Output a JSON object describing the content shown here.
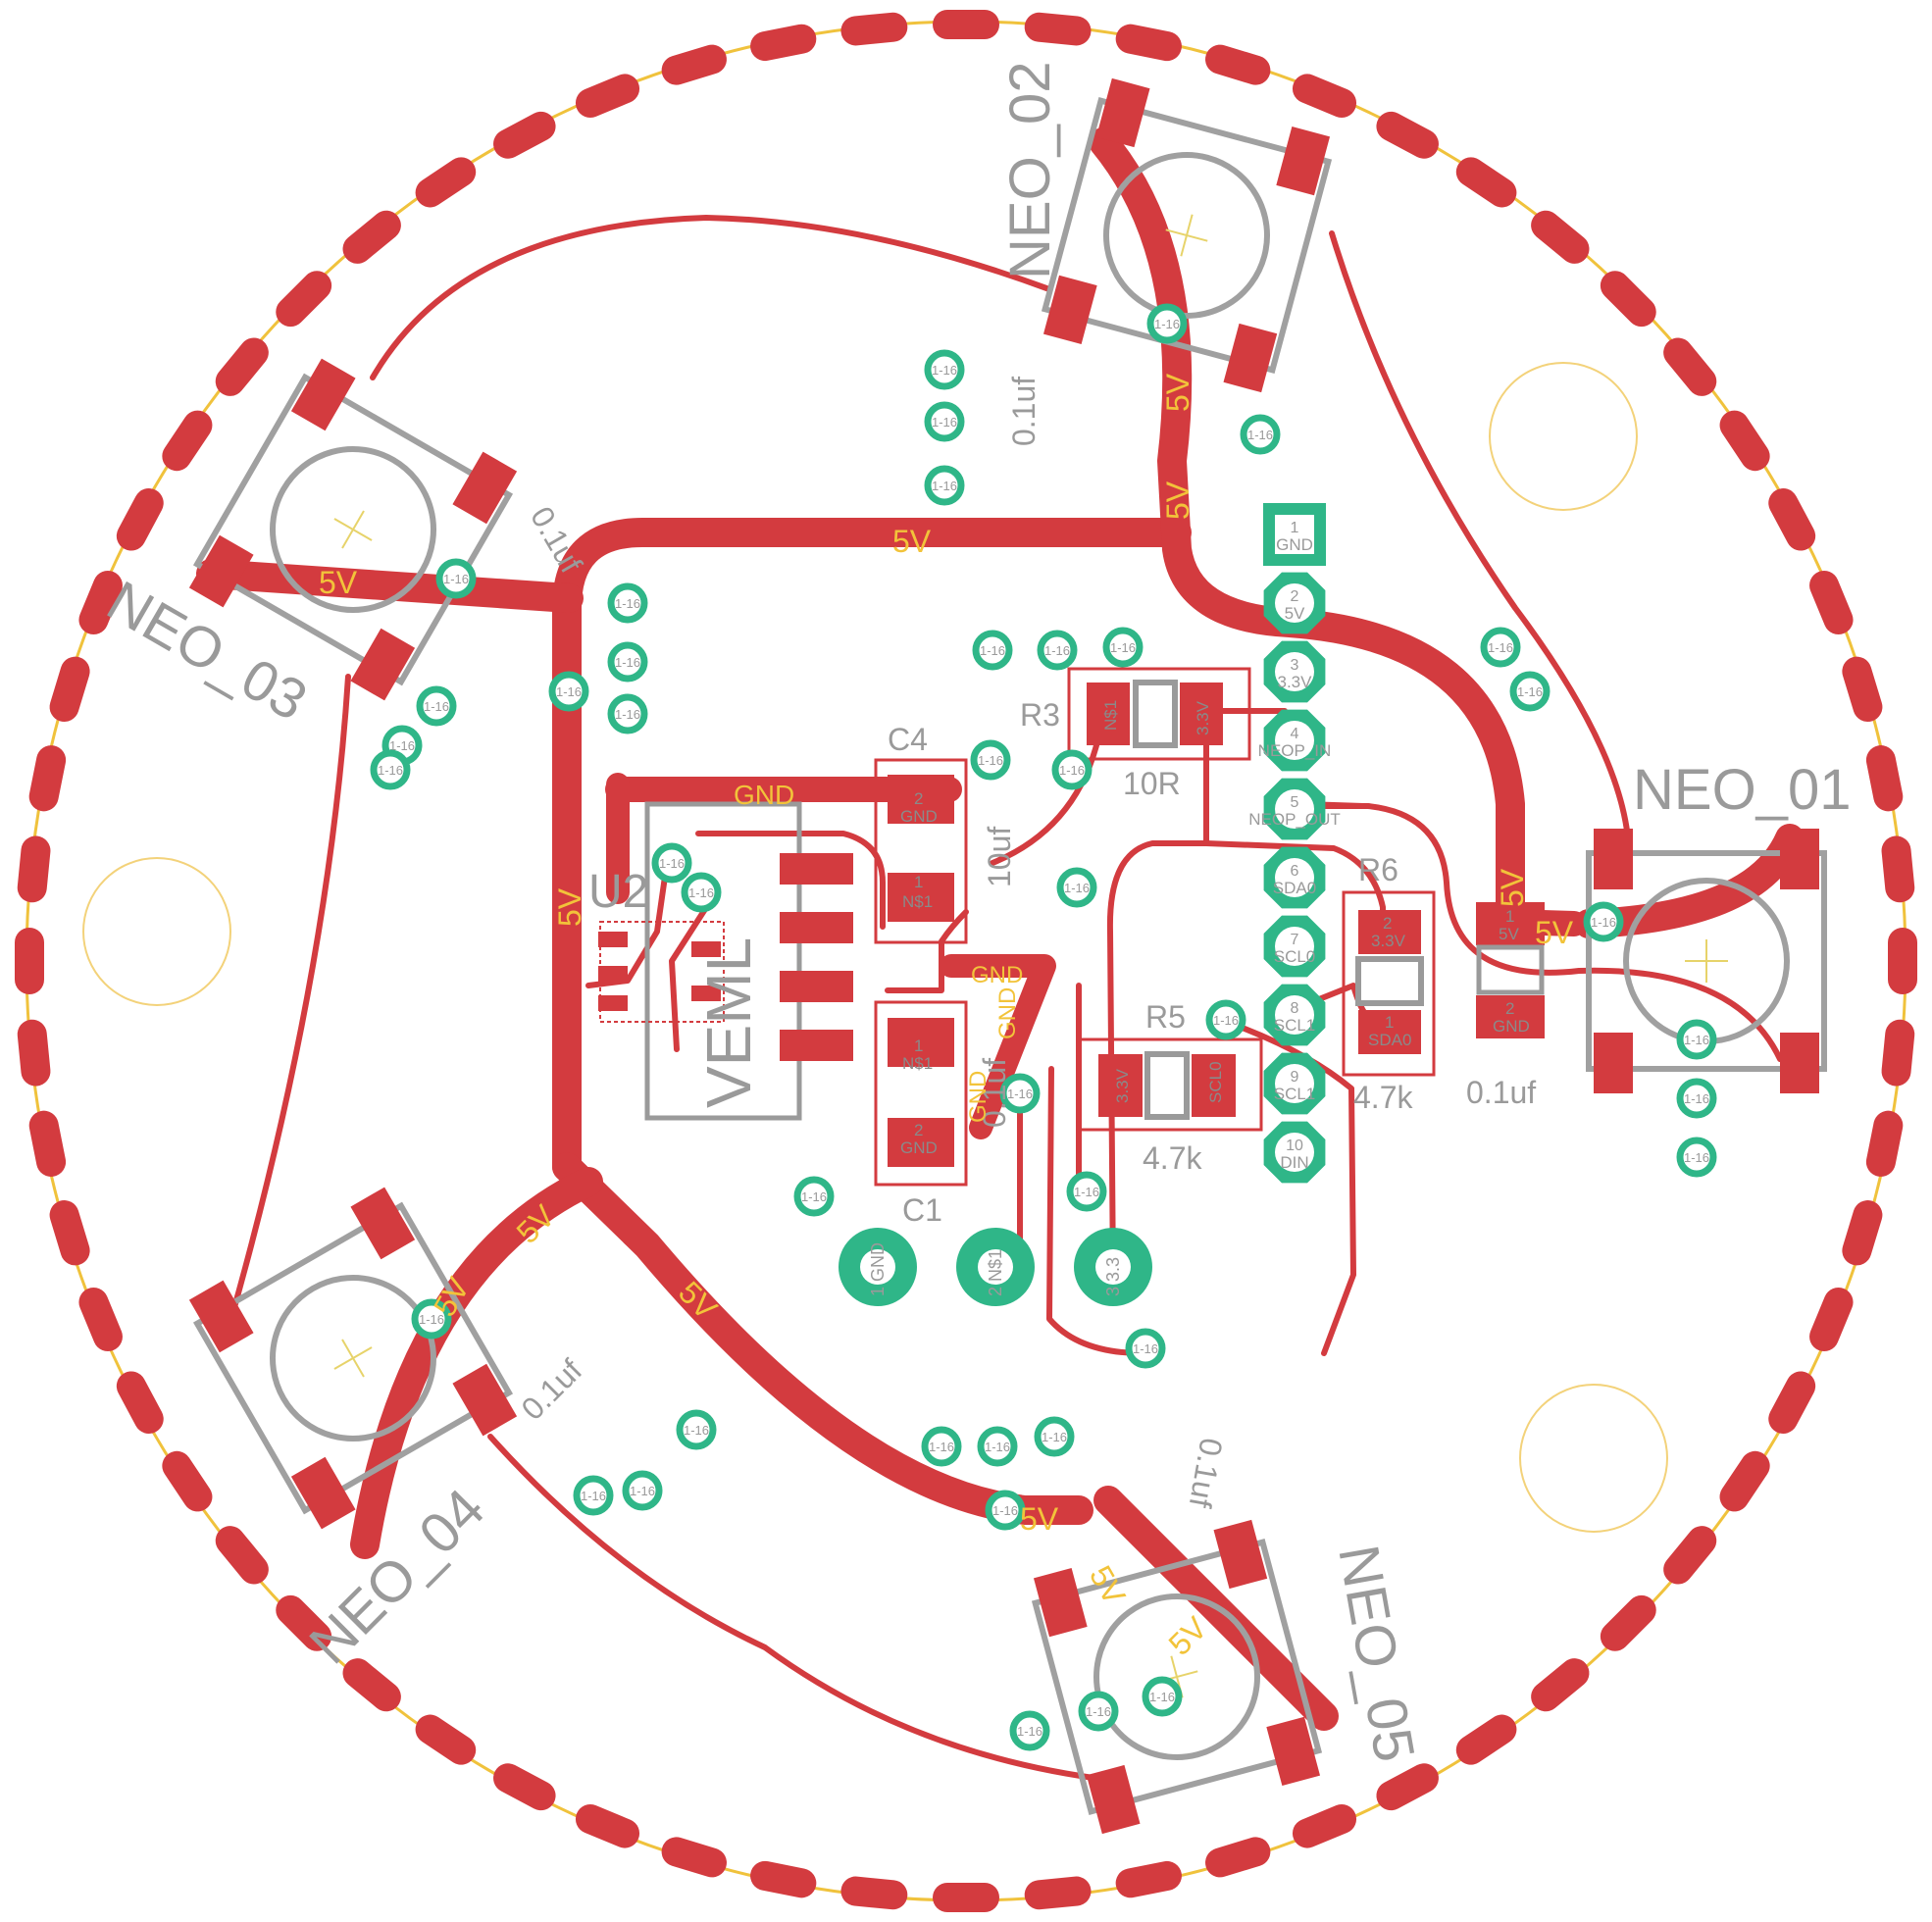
{
  "colors": {
    "copper": "#d33b3f",
    "silkscreen": "#a0a0a0",
    "via": "#2fb688",
    "outline": "#f0c23c",
    "net_label": "#f2c33a",
    "background": "#ffffff"
  },
  "components": {
    "neo_01": "NEO_01",
    "neo_02": "NEO_02",
    "neo_03": "NEO_03",
    "neo_04": "NEO_04",
    "neo_05": "NEO_05",
    "u2": "U2",
    "u2_value": "VEML",
    "r3": "R3",
    "r3_value": "10R",
    "r5": "R5",
    "r5_value": "4.7k",
    "r6": "R6",
    "r6_value": "4.7k",
    "c1": "C1",
    "c4": "C4",
    "c4_value": "10uf",
    "c1_value": "0.1uf",
    "cap_value": "0.1uf"
  },
  "nets": {
    "five_v": "5V",
    "gnd": "GND",
    "three_v3": "3.3V"
  },
  "via_label": "1-16",
  "header_pins": [
    {
      "num": "1",
      "name": "GND"
    },
    {
      "num": "2",
      "name": "5V"
    },
    {
      "num": "3",
      "name": "3.3V"
    },
    {
      "num": "4",
      "name": "NEOP_IN"
    },
    {
      "num": "5",
      "name": "NEOP_OUT"
    },
    {
      "num": "6",
      "name": "SDA0"
    },
    {
      "num": "7",
      "name": "SCL0"
    },
    {
      "num": "8",
      "name": "SCL1"
    },
    {
      "num": "9",
      "name": "SCL1"
    },
    {
      "num": "10",
      "name": "DIN"
    }
  ],
  "pad_labels": {
    "pin1": "1",
    "pin2": "2",
    "n1": "N$1",
    "gnd": "GND",
    "five_v": "5V",
    "three_v3": "3.3V",
    "sda0": "SDA0",
    "scl0": "SCL0"
  },
  "bottom_pads": [
    {
      "num": "1",
      "name": "GND"
    },
    {
      "num": "2",
      "name": "N$1"
    },
    {
      "num": "3",
      "name": "3.3"
    }
  ]
}
